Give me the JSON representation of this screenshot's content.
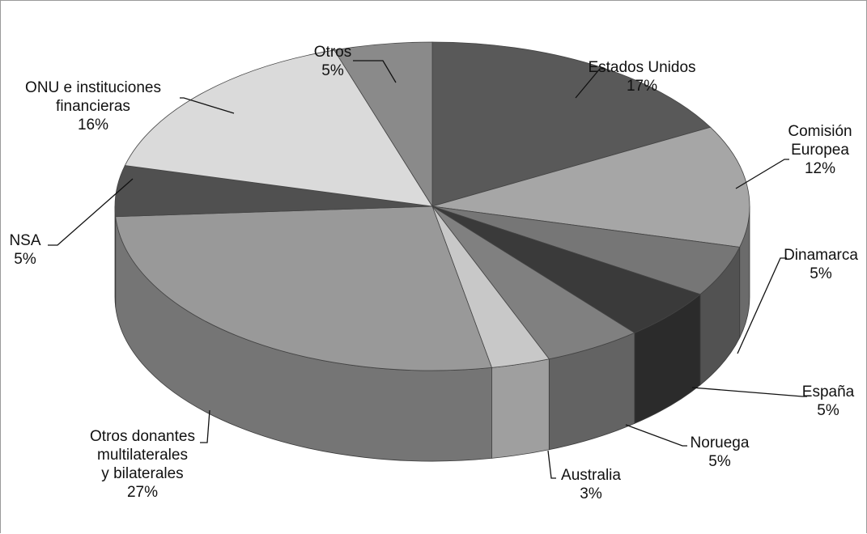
{
  "chart_data": {
    "type": "pie",
    "style": "3d",
    "title": "",
    "unit": "%",
    "slices": [
      {
        "label": "Estados Unidos",
        "value": 17,
        "value_label": "17%",
        "color": "#595959"
      },
      {
        "label": "Comisión Europea",
        "value": 12,
        "value_label": "12%",
        "color": "#a6a6a6"
      },
      {
        "label": "Dinamarca",
        "value": 5,
        "value_label": "5%",
        "color": "#767676"
      },
      {
        "label": "España",
        "value": 5,
        "value_label": "5%",
        "color": "#3a3a3a"
      },
      {
        "label": "Noruega",
        "value": 5,
        "value_label": "5%",
        "color": "#808080"
      },
      {
        "label": "Australia",
        "value": 3,
        "value_label": "3%",
        "color": "#c8c8c8"
      },
      {
        "label": "Otros donantes multilaterales y bilaterales",
        "value": 27,
        "value_label": "27%",
        "color": "#999999"
      },
      {
        "label": "NSA",
        "value": 5,
        "value_label": "5%",
        "color": "#505050"
      },
      {
        "label": "ONU e instituciones financieras",
        "value": 16,
        "value_label": "16%",
        "color": "#dadada"
      },
      {
        "label": "Otros",
        "value": 5,
        "value_label": "5%",
        "color": "#8a8a8a"
      }
    ],
    "legend": "none",
    "data_labels": "outside with leader lines"
  }
}
